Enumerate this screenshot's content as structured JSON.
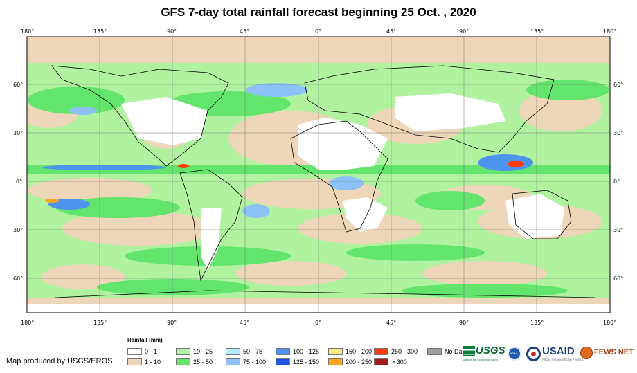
{
  "title": "GFS 7-day total rainfall forecast beginning 25 Oct. , 2020",
  "top_longitudes": [
    "180°",
    "135°",
    "90°",
    "45°",
    "0°",
    "45°",
    "90°",
    "135°",
    "180°"
  ],
  "bottom_longitudes": [
    "180°",
    "135°",
    "90°",
    "45°",
    "0°",
    "45°",
    "90°",
    "135°",
    "180°"
  ],
  "left_latitudes": [
    "60°",
    "30°",
    "0°",
    "30°",
    "60°"
  ],
  "right_latitudes": [
    "60°",
    "30°",
    "0°",
    "30°",
    "60°"
  ],
  "legend": {
    "title": "Rainfall (mm)",
    "items": [
      {
        "label": "0 - 1",
        "color": "#ffffff"
      },
      {
        "label": "1 - 10",
        "color": "#eed7b9"
      },
      {
        "label": "10 - 25",
        "color": "#b0f2a0"
      },
      {
        "label": "25 - 50",
        "color": "#63e46c"
      },
      {
        "label": "50 - 75",
        "color": "#b5ecfb"
      },
      {
        "label": "75 - 100",
        "color": "#8cc2f8"
      },
      {
        "label": "100 - 125",
        "color": "#4d93ef"
      },
      {
        "label": "125 - 150",
        "color": "#1e58dc"
      },
      {
        "label": "150 - 200",
        "color": "#ffe68a"
      },
      {
        "label": "200 - 250",
        "color": "#ffa319"
      },
      {
        "label": "250 - 300",
        "color": "#ff3b0b"
      },
      {
        "label": "> 300",
        "color": "#a61a1a"
      },
      {
        "label": "No Data",
        "color": "#9e9e9e"
      }
    ]
  },
  "credit": "Map produced by USGS/EROS",
  "logos": {
    "usgs": "USGS",
    "usgs_tagline": "science for a changing world",
    "noaa": "NOAA",
    "usaid": "USAID",
    "usaid_tagline": "FROM THE AMERICAN PEOPLE",
    "fewsnet": "FEWS NET"
  },
  "colors": {
    "green_light": "#b0f2a0",
    "green": "#63e46c",
    "tan": "#eed7b9",
    "blue": "#4d93ef"
  }
}
